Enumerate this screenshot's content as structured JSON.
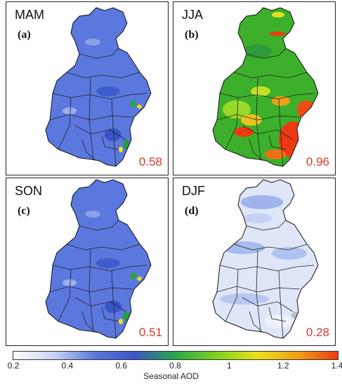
{
  "panels": [
    {
      "season": "MAM",
      "letter": "(a)",
      "value": "0.58",
      "palette": "blue"
    },
    {
      "season": "JJA",
      "letter": "(b)",
      "value": "0.96",
      "palette": "green"
    },
    {
      "season": "SON",
      "letter": "(c)",
      "value": "0.51",
      "palette": "blue"
    },
    {
      "season": "DJF",
      "letter": "(d)",
      "value": "0.28",
      "palette": "pale"
    }
  ],
  "colorbar": {
    "label": "Seasonal AOD",
    "ticks": [
      "0.2",
      "0.4",
      "0.6",
      "0.8",
      "1",
      "1.2",
      "1.4"
    ],
    "range": [
      0.2,
      1.4
    ],
    "colors": [
      "#ffffff",
      "#c9d6f2",
      "#5b77dd",
      "#3a55c8",
      "#27a84a",
      "#7fd21e",
      "#e8e21a",
      "#f0a016",
      "#ee3a12"
    ]
  },
  "colors": {
    "value_text": "#d23a2a",
    "map_outline": "#111111"
  }
}
